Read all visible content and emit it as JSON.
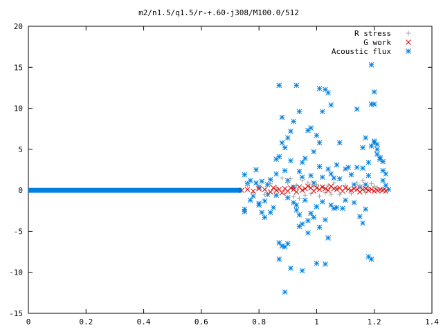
{
  "chart_data": {
    "type": "scatter",
    "title": "m2/n1.5/q1.5/r-+.60-j308/M100.0/512",
    "xlabel": "",
    "ylabel": "",
    "xlim": [
      0,
      1.4
    ],
    "ylim": [
      -15,
      20
    ],
    "x_ticks": [
      0,
      0.2,
      0.4,
      0.6,
      0.8,
      1,
      1.2,
      1.4
    ],
    "x_tick_labels": [
      "0",
      "0.2",
      "0.4",
      "0.6",
      "0.8",
      "1",
      "1.2",
      "1.4"
    ],
    "y_ticks": [
      -15,
      -10,
      -5,
      0,
      5,
      10,
      15,
      20
    ],
    "y_tick_labels": [
      "-15",
      "-10",
      "-5",
      "0",
      "5",
      "10",
      "15",
      "20"
    ],
    "grid": false,
    "legend_position": "top-right",
    "series": [
      {
        "name": "R stress",
        "marker": "plus",
        "color": "#a0a0a0",
        "points": [
          [
            0.76,
            0.6
          ],
          [
            0.78,
            -0.3
          ],
          [
            0.8,
            0.3
          ],
          [
            0.82,
            -0.5
          ],
          [
            0.84,
            0.8
          ],
          [
            0.86,
            0.4
          ],
          [
            0.88,
            1.5
          ],
          [
            0.89,
            -0.4
          ],
          [
            0.9,
            0.9
          ],
          [
            0.91,
            1.4
          ],
          [
            0.92,
            -0.8
          ],
          [
            0.93,
            0.6
          ],
          [
            0.94,
            -1.0
          ],
          [
            0.95,
            1.2
          ],
          [
            0.96,
            -0.6
          ],
          [
            0.97,
            0.9
          ],
          [
            0.98,
            -0.4
          ],
          [
            0.99,
            0.5
          ],
          [
            1.0,
            0.7
          ],
          [
            1.01,
            -0.7
          ],
          [
            1.02,
            0.4
          ],
          [
            1.03,
            -0.3
          ],
          [
            1.04,
            0.6
          ],
          [
            1.05,
            -0.5
          ],
          [
            1.06,
            0.9
          ],
          [
            1.07,
            0.3
          ],
          [
            1.08,
            -0.5
          ],
          [
            1.1,
            0.6
          ],
          [
            1.12,
            -0.4
          ],
          [
            1.14,
            0.9
          ],
          [
            1.15,
            0.5
          ],
          [
            1.16,
            1.2
          ],
          [
            1.17,
            -0.3
          ],
          [
            1.18,
            0.4
          ],
          [
            1.19,
            0.8
          ],
          [
            1.2,
            0.5
          ],
          [
            1.21,
            0.3
          ],
          [
            1.22,
            -0.2
          ],
          [
            1.23,
            0.2
          ],
          [
            1.24,
            0.1
          ]
        ]
      },
      {
        "name": "G work",
        "marker": "cross",
        "color": "#e00000",
        "points": [
          [
            0.74,
            0.0
          ],
          [
            0.76,
            0.1
          ],
          [
            0.78,
            -0.1
          ],
          [
            0.8,
            0.2
          ],
          [
            0.82,
            0.1
          ],
          [
            0.84,
            -0.2
          ],
          [
            0.85,
            0.3
          ],
          [
            0.86,
            0.0
          ],
          [
            0.87,
            0.1
          ],
          [
            0.88,
            -0.3
          ],
          [
            0.89,
            0.2
          ],
          [
            0.9,
            -0.1
          ],
          [
            0.91,
            0.3
          ],
          [
            0.92,
            0.1
          ],
          [
            0.93,
            -0.2
          ],
          [
            0.94,
            0.4
          ],
          [
            0.95,
            0.0
          ],
          [
            0.96,
            0.2
          ],
          [
            0.97,
            0.5
          ],
          [
            0.98,
            0.3
          ],
          [
            0.99,
            -0.1
          ],
          [
            1.0,
            0.3
          ],
          [
            1.01,
            0.1
          ],
          [
            1.02,
            0.4
          ],
          [
            1.03,
            0.2
          ],
          [
            1.04,
            0.0
          ],
          [
            1.05,
            0.5
          ],
          [
            1.06,
            0.2
          ],
          [
            1.07,
            0.1
          ],
          [
            1.08,
            0.3
          ],
          [
            1.09,
            -0.1
          ],
          [
            1.1,
            0.3
          ],
          [
            1.11,
            0.1
          ],
          [
            1.12,
            0.0
          ],
          [
            1.13,
            0.2
          ],
          [
            1.14,
            0.1
          ],
          [
            1.15,
            -0.2
          ],
          [
            1.16,
            0.1
          ],
          [
            1.17,
            0.2
          ],
          [
            1.18,
            0.0
          ],
          [
            1.19,
            0.1
          ],
          [
            1.2,
            -0.1
          ],
          [
            1.21,
            0.0
          ],
          [
            1.22,
            0.1
          ],
          [
            1.23,
            0.0
          ],
          [
            1.24,
            -0.1
          ]
        ]
      },
      {
        "name": "Acoustic flux",
        "marker": "star",
        "color": "#0080e0",
        "line_zero_from": [
          0,
          0.74
        ],
        "points": [
          [
            0.75,
            1.9
          ],
          [
            0.75,
            -2.3
          ],
          [
            0.75,
            -2.6
          ],
          [
            0.76,
            0.8
          ],
          [
            0.77,
            1.2
          ],
          [
            0.77,
            -1.2
          ],
          [
            0.78,
            -0.7
          ],
          [
            0.79,
            0.9
          ],
          [
            0.79,
            2.5
          ],
          [
            0.8,
            -1.8
          ],
          [
            0.8,
            -1.6
          ],
          [
            0.8,
            0.4
          ],
          [
            0.81,
            -2.7
          ],
          [
            0.81,
            1.1
          ],
          [
            0.82,
            -3.3
          ],
          [
            0.82,
            -1.3
          ],
          [
            0.83,
            0.7
          ],
          [
            0.83,
            -0.5
          ],
          [
            0.84,
            -2.7
          ],
          [
            0.84,
            1.3
          ],
          [
            0.85,
            -2.1
          ],
          [
            0.86,
            -0.6
          ],
          [
            0.86,
            2.0
          ],
          [
            0.86,
            3.8
          ],
          [
            0.87,
            12.8
          ],
          [
            0.87,
            -6.4
          ],
          [
            0.87,
            -8.4
          ],
          [
            0.87,
            4.1
          ],
          [
            0.88,
            8.9
          ],
          [
            0.88,
            5.8
          ],
          [
            0.88,
            -6.8
          ],
          [
            0.89,
            5.2
          ],
          [
            0.89,
            -12.4
          ],
          [
            0.89,
            -6.9
          ],
          [
            0.89,
            2.4
          ],
          [
            0.9,
            6.4
          ],
          [
            0.9,
            -6.5
          ],
          [
            0.9,
            1.2
          ],
          [
            0.9,
            -0.9
          ],
          [
            0.91,
            7.2
          ],
          [
            0.91,
            -9.5
          ],
          [
            0.91,
            3.6
          ],
          [
            0.92,
            8.4
          ],
          [
            0.92,
            -1.5
          ],
          [
            0.92,
            0.4
          ],
          [
            0.93,
            12.8
          ],
          [
            0.93,
            -1.8
          ],
          [
            0.93,
            -2.4
          ],
          [
            0.94,
            9.6
          ],
          [
            0.94,
            -4.4
          ],
          [
            0.94,
            -3.0
          ],
          [
            0.94,
            2.3
          ],
          [
            0.95,
            3.4
          ],
          [
            0.95,
            -9.8
          ],
          [
            0.95,
            -4.1
          ],
          [
            0.95,
            1.6
          ],
          [
            0.96,
            3.9
          ],
          [
            0.96,
            -1.2
          ],
          [
            0.97,
            7.3
          ],
          [
            0.97,
            -5.2
          ],
          [
            0.97,
            -3.7
          ],
          [
            0.98,
            7.6
          ],
          [
            0.98,
            1.8
          ],
          [
            0.98,
            -2.8
          ],
          [
            0.99,
            4.7
          ],
          [
            0.99,
            -3.3
          ],
          [
            0.99,
            0.9
          ],
          [
            1.0,
            6.7
          ],
          [
            1.0,
            -8.9
          ],
          [
            1.0,
            -2.0
          ],
          [
            1.01,
            12.4
          ],
          [
            1.01,
            5.8
          ],
          [
            1.01,
            -4.5
          ],
          [
            1.01,
            2.9
          ],
          [
            1.02,
            9.6
          ],
          [
            1.02,
            -1.4
          ],
          [
            1.02,
            1.6
          ],
          [
            1.03,
            12.3
          ],
          [
            1.03,
            -9.0
          ],
          [
            1.03,
            -3.6
          ],
          [
            1.04,
            11.9
          ],
          [
            1.04,
            2.6
          ],
          [
            1.04,
            -5.8
          ],
          [
            1.05,
            10.4
          ],
          [
            1.05,
            -1.8
          ],
          [
            1.05,
            2.0
          ],
          [
            1.06,
            1.5
          ],
          [
            1.06,
            -2.2
          ],
          [
            1.07,
            3.1
          ],
          [
            1.07,
            -2.1
          ],
          [
            1.08,
            5.8
          ],
          [
            1.08,
            1.4
          ],
          [
            1.09,
            -2.2
          ],
          [
            1.1,
            2.6
          ],
          [
            1.1,
            -1.2
          ],
          [
            1.11,
            2.8
          ],
          [
            1.12,
            1.9
          ],
          [
            1.13,
            0.7
          ],
          [
            1.13,
            -1.5
          ],
          [
            1.14,
            9.9
          ],
          [
            1.14,
            2.8
          ],
          [
            1.15,
            0.4
          ],
          [
            1.15,
            -3.2
          ],
          [
            1.16,
            5.2
          ],
          [
            1.16,
            2.7
          ],
          [
            1.16,
            -4.0
          ],
          [
            1.17,
            6.4
          ],
          [
            1.17,
            -2.3
          ],
          [
            1.17,
            0.7
          ],
          [
            1.18,
            1.8
          ],
          [
            1.18,
            -8.1
          ],
          [
            1.18,
            3.4
          ],
          [
            1.19,
            15.3
          ],
          [
            1.19,
            10.5
          ],
          [
            1.19,
            -8.4
          ],
          [
            1.19,
            5.4
          ],
          [
            1.2,
            12.0
          ],
          [
            1.2,
            10.5
          ],
          [
            1.2,
            6.0
          ],
          [
            1.2,
            5.8
          ],
          [
            1.21,
            5.6
          ],
          [
            1.21,
            4.4
          ],
          [
            1.21,
            5.0
          ],
          [
            1.22,
            4.0
          ],
          [
            1.22,
            3.8
          ],
          [
            1.23,
            3.5
          ],
          [
            1.23,
            2.4
          ],
          [
            1.23,
            1.2
          ],
          [
            1.24,
            2.0
          ],
          [
            1.24,
            0.6
          ],
          [
            1.25,
            0.1
          ]
        ]
      }
    ]
  }
}
